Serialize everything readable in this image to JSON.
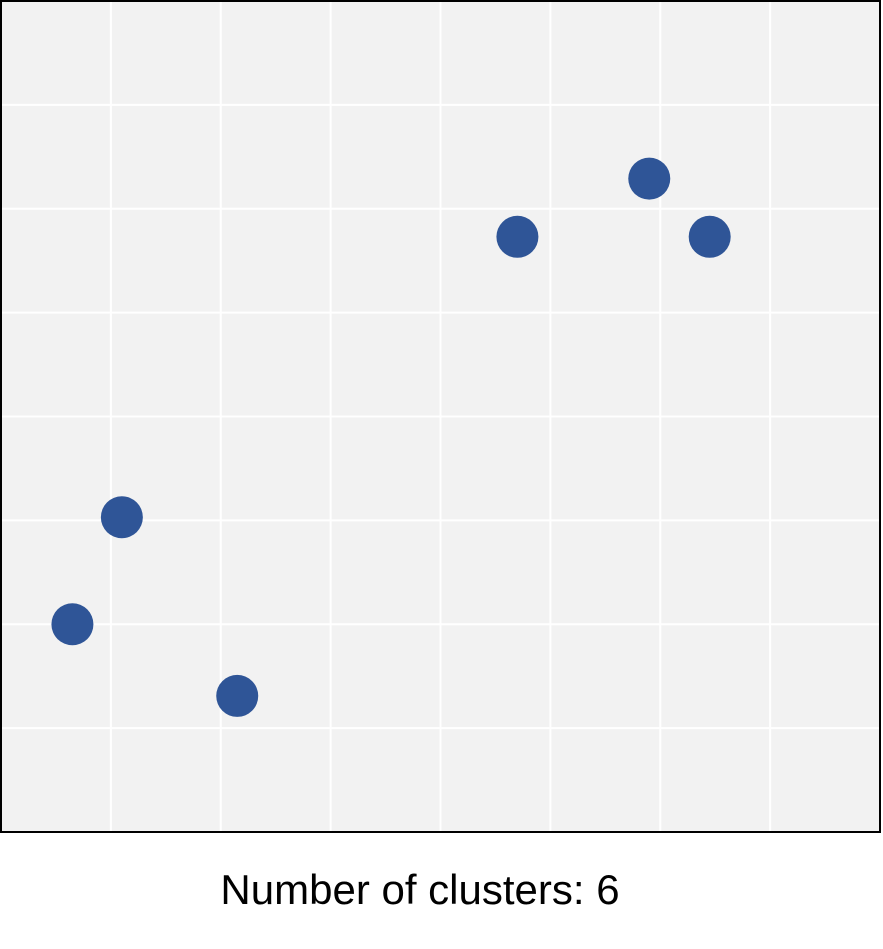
{
  "caption": "Number of clusters: 6",
  "chart_data": {
    "type": "scatter",
    "title": "",
    "xlabel": "",
    "ylabel": "",
    "xlim": [
      0,
      8
    ],
    "ylim": [
      0,
      8
    ],
    "grid": true,
    "tick_labels": false,
    "legend": "none",
    "x": [
      0.65,
      1.1,
      2.15,
      4.7,
      5.9,
      6.45
    ],
    "y": [
      2.0,
      3.03,
      1.31,
      5.73,
      6.29,
      5.73
    ],
    "colors": {
      "point": "#2f5597",
      "plot_background": "#f2f2f2",
      "grid": "#ffffff",
      "border": "#000000"
    }
  }
}
